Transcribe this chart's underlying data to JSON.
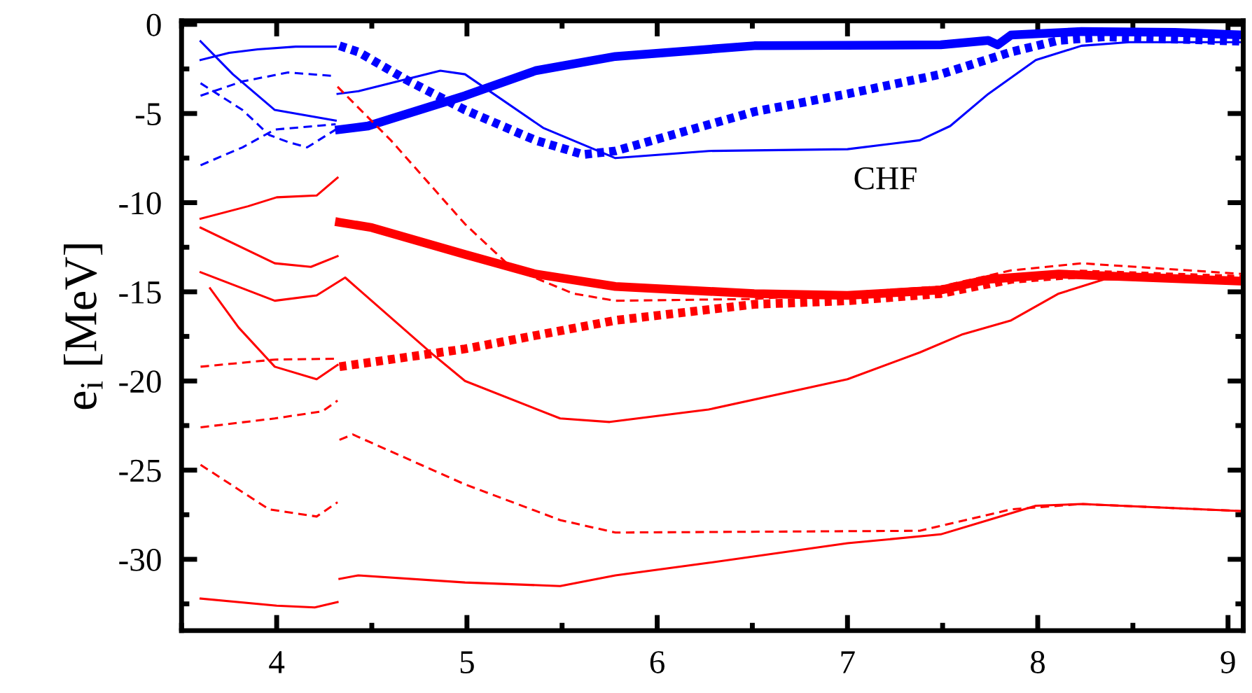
{
  "chart_data": {
    "type": "line",
    "ylabel": "e$_{i}$ [MeV]",
    "annotations": [
      "CHF"
    ],
    "xlim": [
      3.5,
      9.08
    ],
    "ylim": [
      -34,
      0.2
    ],
    "xticks": [
      {
        "value": 3.5,
        "label": null
      },
      4,
      {
        "value": 4.5,
        "label": null
      },
      5,
      {
        "value": 5.5,
        "label": null
      },
      6,
      {
        "value": 6.5,
        "label": null
      },
      7,
      {
        "value": 7.5,
        "label": null
      },
      8,
      {
        "value": 8.5,
        "label": null
      },
      9
    ],
    "yticks": [
      {
        "value": -32.5,
        "label": null
      },
      -30,
      {
        "value": -27.5,
        "label": null
      },
      -25,
      {
        "value": -22.5,
        "label": null
      },
      -20,
      {
        "value": -17.5,
        "label": null
      },
      -15,
      {
        "value": -12.5,
        "label": null
      },
      -10,
      {
        "value": -7.5,
        "label": null
      },
      -5,
      {
        "value": -2.5,
        "label": null
      },
      0
    ],
    "grid": false,
    "marker": "none",
    "series": [
      {
        "color": "#0000ff",
        "line_style": "solid",
        "x": [
          3.6,
          3.75,
          3.9,
          4.1,
          4.31
        ],
        "values": [
          -2.0,
          -1.6,
          -1.4,
          -1.25,
          -1.25
        ]
      },
      {
        "color": "#0000ff",
        "line_style": "solid",
        "x": [
          3.6,
          3.77,
          3.99,
          4.31
        ],
        "values": [
          -0.95,
          -2.8,
          -4.8,
          -5.4
        ]
      },
      {
        "color": "#0000ff",
        "line_style": "dashed",
        "x": [
          3.6,
          3.82,
          4.06,
          4.31
        ],
        "values": [
          -4.0,
          -3.2,
          -2.7,
          -2.9
        ]
      },
      {
        "color": "#0000ff",
        "line_style": "dashed",
        "x": [
          3.6,
          3.82,
          3.96,
          4.06,
          4.16,
          4.31
        ],
        "values": [
          -3.3,
          -4.8,
          -6.2,
          -6.6,
          -6.9,
          -5.9
        ]
      },
      {
        "color": "#0000ff",
        "line_style": "dashed",
        "x": [
          3.6,
          3.82,
          3.99,
          4.31
        ],
        "values": [
          -7.9,
          -6.9,
          -5.9,
          -5.6
        ]
      },
      {
        "color": "#0000ff",
        "line_style": "solid",
        "x": [
          4.32,
          4.43,
          4.86,
          4.99,
          5.4,
          5.78,
          6.27,
          7.0,
          7.38,
          7.54,
          7.74,
          7.99,
          8.23,
          8.48,
          9.08
        ],
        "values": [
          -3.9,
          -3.75,
          -2.6,
          -2.8,
          -5.8,
          -7.5,
          -7.1,
          -7.0,
          -6.5,
          -5.7,
          -3.9,
          -2.0,
          -1.2,
          -1.0,
          -1.0
        ]
      },
      {
        "color": "#0000ff",
        "line_style": "solid",
        "x": [
          4.33,
          4.48,
          4.99,
          5.36,
          5.78,
          6.51,
          7.49,
          7.74,
          7.79,
          7.86,
          8.23,
          8.72,
          9.08
        ],
        "values": [
          -5.9,
          -5.7,
          -4.0,
          -2.6,
          -1.8,
          -1.2,
          -1.15,
          -0.9,
          -1.15,
          -0.6,
          -0.4,
          -0.45,
          -0.6
        ]
      },
      {
        "color": "#0000ff",
        "line_style": "dotted",
        "x": [
          4.33,
          4.43,
          4.68,
          4.99,
          5.36,
          5.61,
          5.78,
          6.51,
          7.0,
          7.49,
          7.86,
          8.11,
          8.35,
          9.08
        ],
        "values": [
          -1.2,
          -1.55,
          -3.1,
          -4.8,
          -6.5,
          -7.3,
          -7.1,
          -4.9,
          -3.9,
          -2.8,
          -1.55,
          -0.9,
          -0.7,
          -0.95
        ]
      },
      {
        "color": "#ff0000",
        "line_style": "solid",
        "x": [
          3.6,
          3.85,
          4.0,
          4.21,
          4.32
        ],
        "values": [
          -10.9,
          -10.2,
          -9.7,
          -9.6,
          -8.6
        ]
      },
      {
        "color": "#ff0000",
        "line_style": "solid",
        "x": [
          3.6,
          3.99,
          4.18,
          4.32
        ],
        "values": [
          -11.4,
          -13.4,
          -13.6,
          -13.0
        ]
      },
      {
        "color": "#ff0000",
        "line_style": "solid",
        "x": [
          3.6,
          3.99,
          4.21,
          4.36,
          4.82,
          4.99,
          5.49,
          5.75,
          6.27,
          7.0,
          7.38,
          7.6,
          7.86,
          8.11,
          8.35,
          9.08
        ],
        "values": [
          -13.9,
          -15.5,
          -15.2,
          -14.2,
          -18.5,
          -20.0,
          -22.1,
          -22.3,
          -21.6,
          -19.9,
          -18.4,
          -17.4,
          -16.6,
          -15.1,
          -14.3,
          -14.4
        ]
      },
      {
        "color": "#ff0000",
        "line_style": "solid",
        "x": [
          3.65,
          3.8,
          3.99,
          4.21,
          4.32
        ],
        "values": [
          -14.8,
          -17.0,
          -19.2,
          -19.9,
          -19.1
        ]
      },
      {
        "color": "#ff0000",
        "line_style": "dashed",
        "x": [
          3.6,
          3.99,
          4.32
        ],
        "values": [
          -19.2,
          -18.8,
          -18.75
        ]
      },
      {
        "color": "#ff0000",
        "line_style": "dashed",
        "x": [
          3.6,
          3.99,
          4.24,
          4.32
        ],
        "values": [
          -22.6,
          -22.1,
          -21.7,
          -21.1
        ]
      },
      {
        "color": "#ff0000",
        "line_style": "dashed",
        "x": [
          3.6,
          3.96,
          4.21,
          4.32
        ],
        "values": [
          -24.7,
          -27.2,
          -27.6,
          -26.8
        ]
      },
      {
        "color": "#ff0000",
        "line_style": "solid",
        "x": [
          3.6,
          4.0,
          4.2,
          4.32
        ],
        "values": [
          -32.2,
          -32.6,
          -32.7,
          -32.4
        ]
      },
      {
        "color": "#ff0000",
        "line_style": "solid",
        "x": [
          4.33,
          4.5,
          4.99,
          5.36,
          5.78,
          6.51,
          7.0,
          7.49,
          7.74,
          8.11,
          9.08
        ],
        "values": [
          -11.1,
          -11.4,
          -12.9,
          -14.0,
          -14.7,
          -15.1,
          -15.2,
          -14.9,
          -14.3,
          -14.0,
          -14.4
        ]
      },
      {
        "color": "#ff0000",
        "line_style": "dotted",
        "x": [
          4.33,
          4.99,
          5.78,
          6.51,
          7.0,
          7.49,
          7.86,
          8.23,
          9.08
        ],
        "values": [
          -19.2,
          -18.2,
          -16.6,
          -15.7,
          -15.5,
          -15.1,
          -14.3,
          -14.0,
          -14.3
        ]
      },
      {
        "color": "#ff0000",
        "line_style": "dashed",
        "x": [
          4.32,
          4.6,
          4.99,
          5.24,
          5.56,
          5.78,
          6.51,
          7.49,
          7.86,
          8.23,
          9.08
        ],
        "values": [
          -3.5,
          -6.5,
          -11.2,
          -13.7,
          -15.1,
          -15.5,
          -15.4,
          -14.7,
          -13.8,
          -13.4,
          -14.0
        ]
      },
      {
        "color": "#ff0000",
        "line_style": "dashed",
        "x": [
          4.33,
          4.4,
          4.99,
          5.49,
          5.78,
          7.38,
          7.62,
          7.86,
          8.23,
          9.08
        ],
        "values": [
          -23.3,
          -23.0,
          -25.8,
          -27.8,
          -28.5,
          -28.4,
          -27.8,
          -27.2,
          -26.9,
          -27.3
        ]
      },
      {
        "color": "#ff0000",
        "line_style": "solid",
        "x": [
          4.33,
          4.43,
          4.99,
          5.49,
          5.78,
          6.27,
          7.0,
          7.49,
          7.74,
          7.99,
          8.23,
          9.08
        ],
        "values": [
          -31.1,
          -30.9,
          -31.3,
          -31.5,
          -30.9,
          -30.2,
          -29.1,
          -28.6,
          -27.8,
          -27.0,
          -26.9,
          -27.3
        ]
      }
    ]
  }
}
